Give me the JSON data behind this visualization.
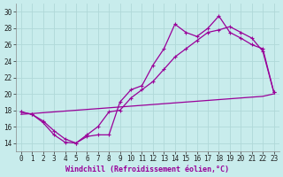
{
  "xlabel": "Windchill (Refroidissement éolien,°C)",
  "bg_color": "#c8ecec",
  "line_color": "#990099",
  "grid_color": "#aacccc",
  "xlim": [
    -0.5,
    23.5
  ],
  "ylim": [
    13.0,
    31.0
  ],
  "xticks": [
    0,
    1,
    2,
    3,
    4,
    5,
    6,
    7,
    8,
    9,
    10,
    11,
    12,
    13,
    14,
    15,
    16,
    17,
    18,
    19,
    20,
    21,
    22,
    23
  ],
  "yticks": [
    14,
    16,
    18,
    20,
    22,
    24,
    26,
    28,
    30
  ],
  "line1_y": [
    17.8,
    17.5,
    16.5,
    15.0,
    14.1,
    14.0,
    14.8,
    15.0,
    15.0,
    19.0,
    20.5,
    21.0,
    23.5,
    25.5,
    28.5,
    27.5,
    27.0,
    28.0,
    29.5,
    27.5,
    26.8,
    26.0,
    25.5,
    20.2
  ],
  "line2_y": [
    17.8,
    17.5,
    16.7,
    15.5,
    14.5,
    14.0,
    15.0,
    16.0,
    17.8,
    18.0,
    19.5,
    20.5,
    21.5,
    23.0,
    24.5,
    25.5,
    26.5,
    27.5,
    27.8,
    28.2,
    27.5,
    26.8,
    25.2,
    20.2
  ],
  "line3_y": [
    17.5,
    17.6,
    17.7,
    17.8,
    17.9,
    18.0,
    18.1,
    18.2,
    18.3,
    18.4,
    18.5,
    18.6,
    18.7,
    18.8,
    18.9,
    19.0,
    19.1,
    19.2,
    19.3,
    19.4,
    19.5,
    19.6,
    19.7,
    20.0
  ],
  "marker_size": 3.5,
  "line_width": 0.9,
  "xlabel_fontsize": 6.0,
  "tick_fontsize": 5.5
}
